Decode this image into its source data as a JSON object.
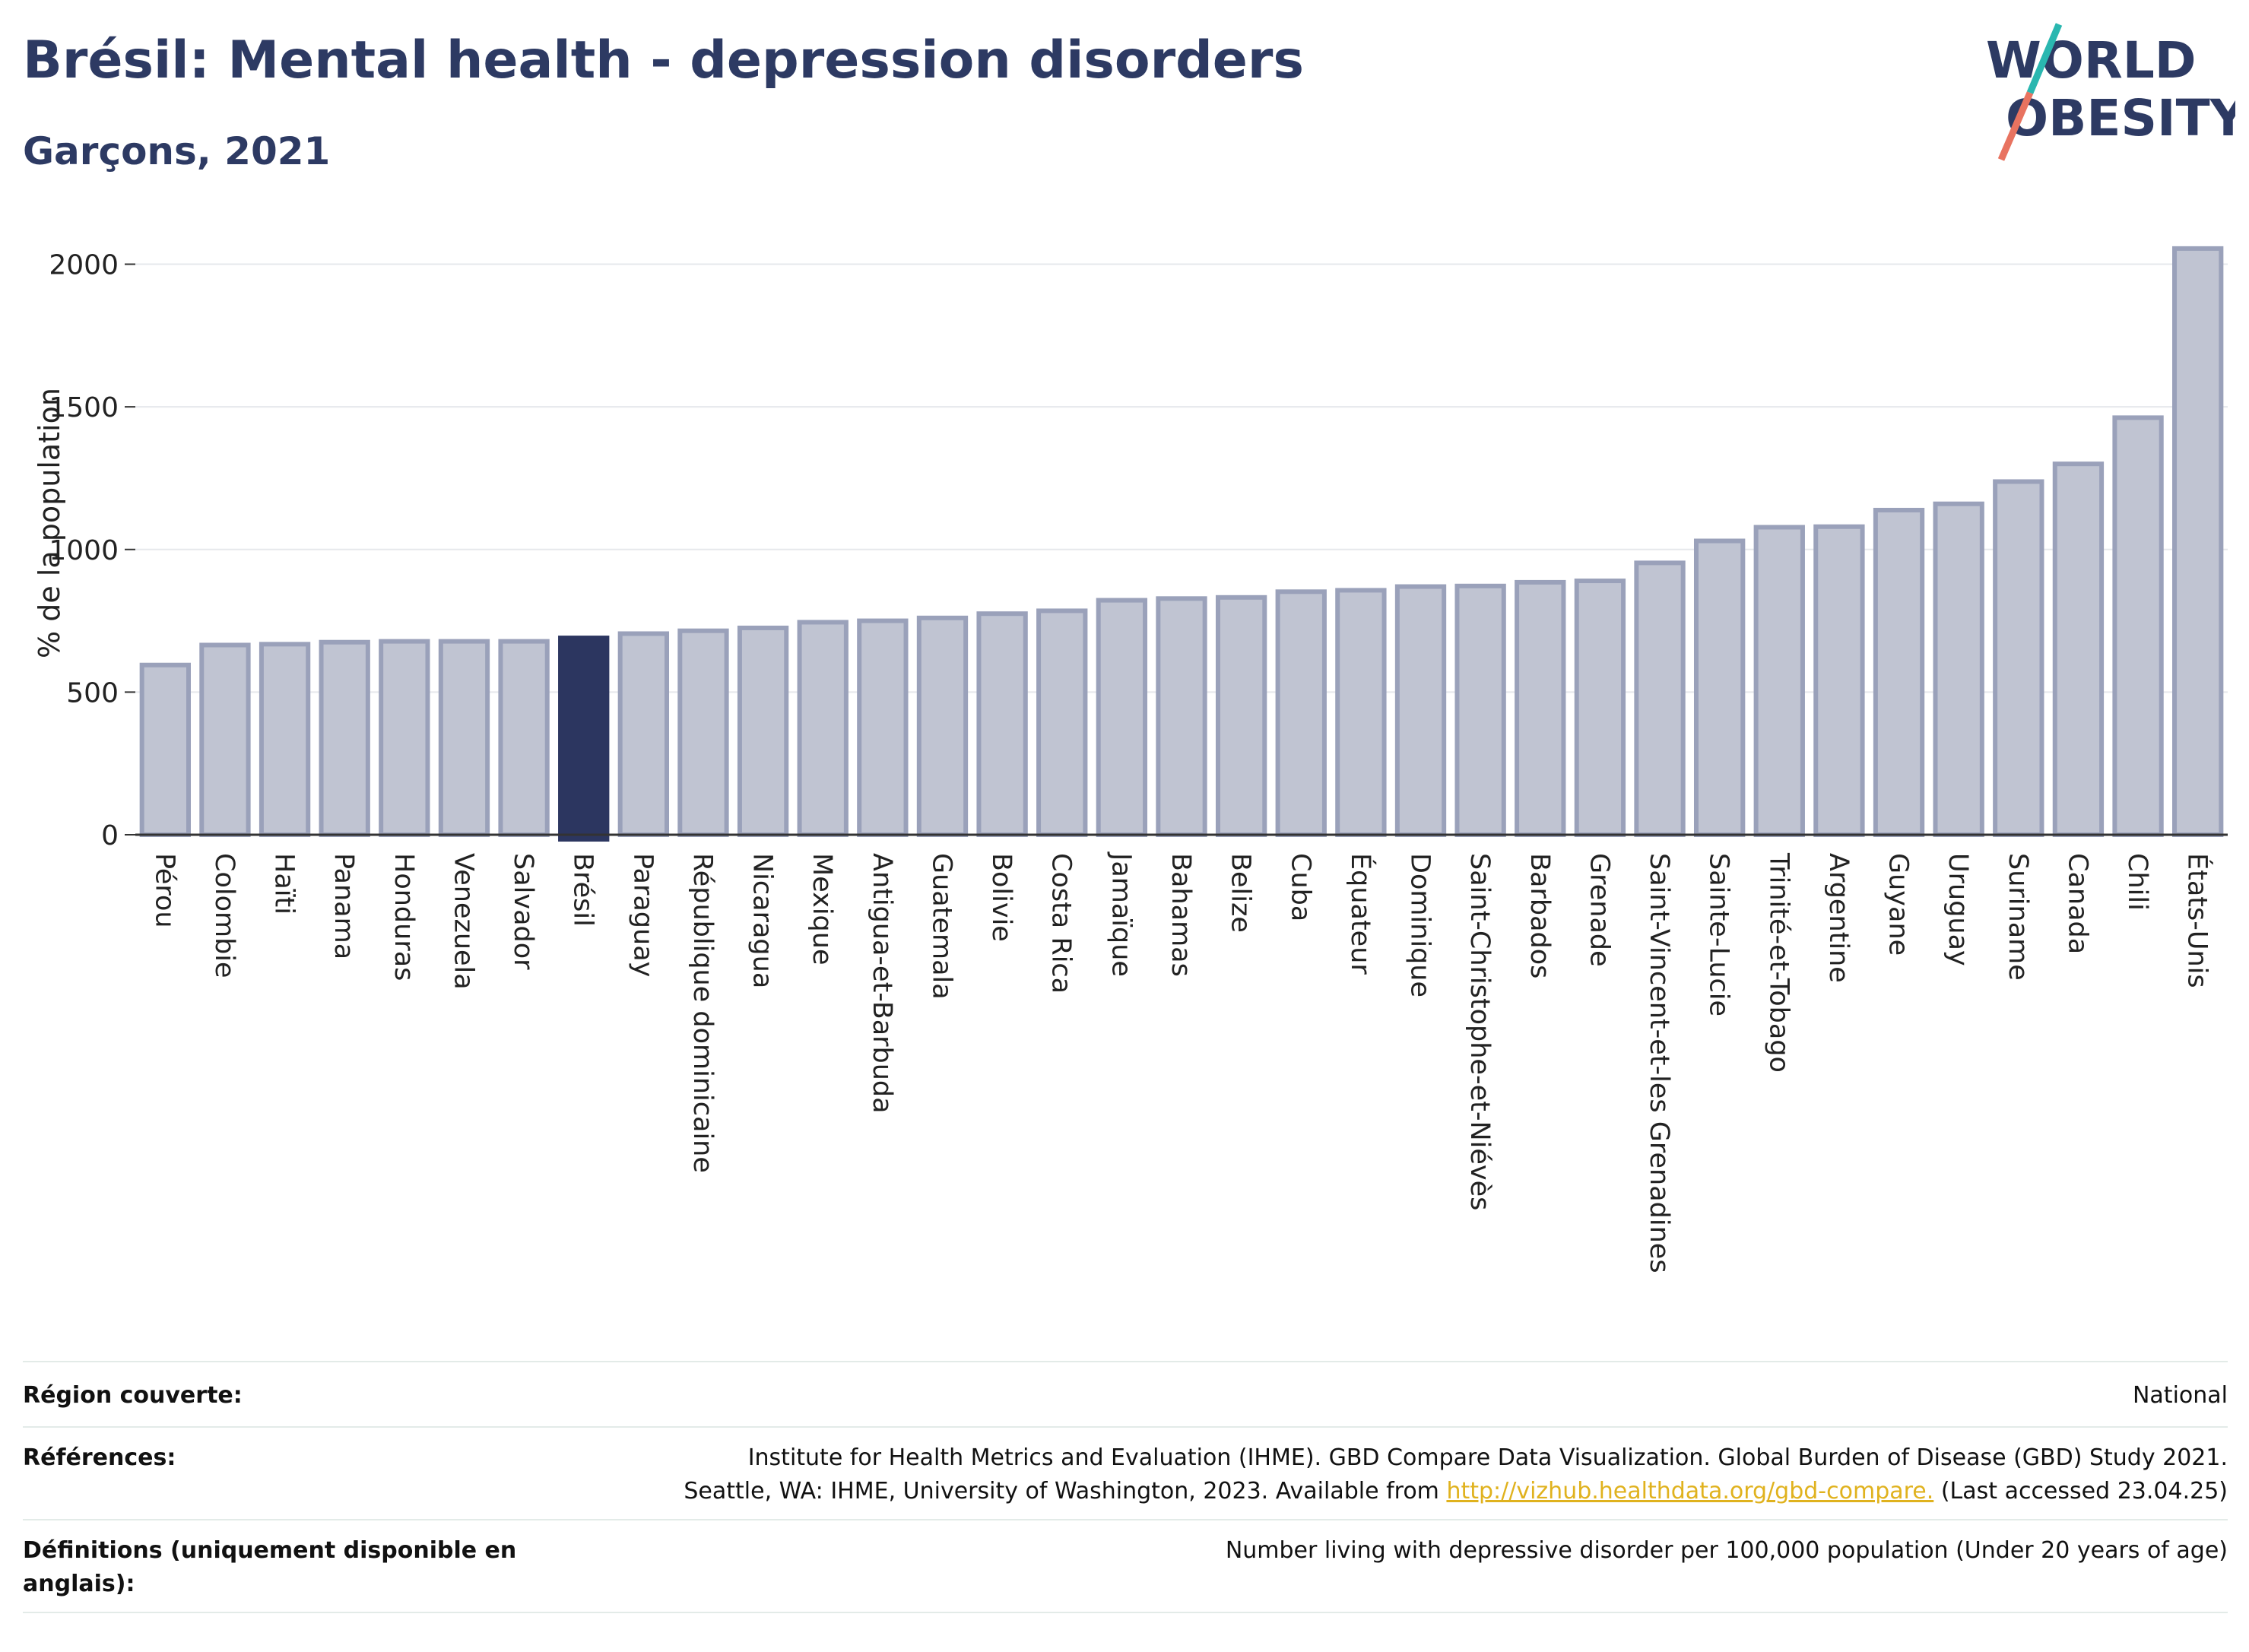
{
  "header": {
    "title": "Brésil: Mental health - depression disorders",
    "subtitle": "Garçons, 2021"
  },
  "logo": {
    "line1": "WORLD",
    "line2": "OBESITY"
  },
  "colors": {
    "highlight": "#2c3660",
    "bar_fill": "#c0c4d2",
    "bar_stroke": "#9aa1ba",
    "accent_teal": "#2ab7b0",
    "accent_coral": "#e87360"
  },
  "chart_data": {
    "type": "bar",
    "ylabel": "% de la population",
    "ylim": [
      0,
      2100
    ],
    "yticks": [
      0,
      500,
      1000,
      1500,
      2000
    ],
    "grid": true,
    "highlight": "Brésil",
    "categories": [
      "Pérou",
      "Colombie",
      "Haïti",
      "Panama",
      "Honduras",
      "Venezuela",
      "Salvador",
      "Brésil",
      "Paraguay",
      "République dominicaine",
      "Nicaragua",
      "Mexique",
      "Antigua-et-Barbuda",
      "Guatemala",
      "Bolivie",
      "Costa Rica",
      "Jamaïque",
      "Bahamas",
      "Belize",
      "Cuba",
      "Équateur",
      "Dominique",
      "Saint-Christophe-et-Niévès",
      "Barbados",
      "Grenade",
      "Saint-Vincent-et-les Grenadines",
      "Sainte-Lucie",
      "Trinité-et-Tobago",
      "Argentine",
      "Guyane",
      "Uruguay",
      "Suriname",
      "Canada",
      "Chili",
      "États-Unis"
    ],
    "values": [
      595,
      665,
      668,
      675,
      678,
      678,
      678,
      690,
      705,
      715,
      725,
      745,
      750,
      760,
      775,
      785,
      822,
      828,
      832,
      852,
      857,
      870,
      872,
      885,
      890,
      953,
      1030,
      1078,
      1080,
      1138,
      1160,
      1238,
      1300,
      1462,
      2055
    ]
  },
  "footer": {
    "rows": [
      {
        "key": "Région couverte:",
        "value": "National"
      },
      {
        "key": "Références:",
        "value_line1": "Institute for Health Metrics and Evaluation (IHME). GBD Compare Data Visualization. Global Burden of Disease (GBD) Study 2021.",
        "value_line2_pre": "Seattle, WA: IHME, University of Washington, 2023. Available from ",
        "link": "http://vizhub.healthdata.org/gbd-compare.",
        "value_line2_post": " (Last accessed 23.04.25)"
      },
      {
        "key": "Définitions (uniquement disponible en anglais):",
        "value": "Number living with depressive disorder per 100,000 population (Under 20 years of age)"
      }
    ]
  }
}
